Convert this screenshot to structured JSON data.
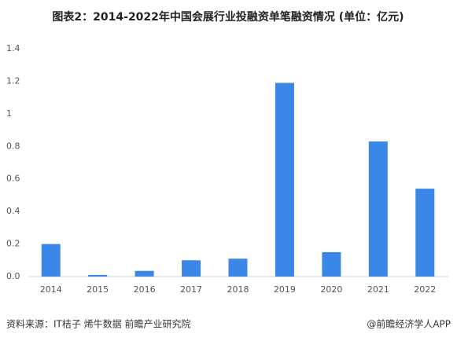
{
  "chart_data": {
    "type": "bar",
    "title": "图表2：2014-2022年中国会展行业投融资单笔融资情况 (单位：亿元)",
    "categories": [
      "2014",
      "2015",
      "2016",
      "2017",
      "2018",
      "2019",
      "2020",
      "2021",
      "2022"
    ],
    "values": [
      0.2,
      0.01,
      0.035,
      0.1,
      0.11,
      1.19,
      0.15,
      0.83,
      0.54
    ],
    "color": "#3a87e8",
    "ylim": [
      0,
      1.4
    ],
    "yticks": [
      {
        "value": 0,
        "label": "0.0"
      },
      0.2,
      0.4,
      0.6,
      0.8,
      1,
      1.2,
      1.4
    ],
    "grid": false,
    "source": "资料来源：IT桔子 烯牛数据 前瞻产业研究院",
    "credit": "@前瞻经济学人APP"
  }
}
